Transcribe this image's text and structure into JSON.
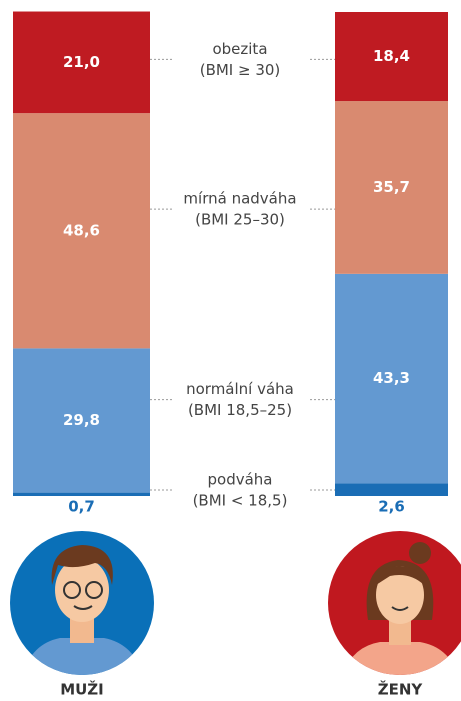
{
  "chart_data": {
    "type": "stacked_bar",
    "categories": [
      "MUŽI",
      "ŽENY"
    ],
    "ylim": [
      0,
      100
    ],
    "series": [
      {
        "name": "podváha",
        "range": "(BMI < 18,5)",
        "color": "#1a6db5",
        "values": [
          0.7,
          2.6
        ],
        "value_labels": [
          "0,7",
          "2,6"
        ]
      },
      {
        "name": "normální váha",
        "range": "(BMI 18,5–25)",
        "color": "#6399d1",
        "values": [
          29.8,
          43.3
        ],
        "value_labels": [
          "29,8",
          "43,3"
        ]
      },
      {
        "name": "mírná nadváha",
        "range": "(BMI 25–30)",
        "color": "#d98a70",
        "values": [
          48.6,
          35.7
        ],
        "value_labels": [
          "48,6",
          "35,7"
        ]
      },
      {
        "name": "obezita",
        "range": "(BMI ≥ 30)",
        "color": "#bf1b22",
        "values": [
          21.0,
          18.4
        ],
        "value_labels": [
          "21,0",
          "18,4"
        ]
      }
    ]
  }
}
